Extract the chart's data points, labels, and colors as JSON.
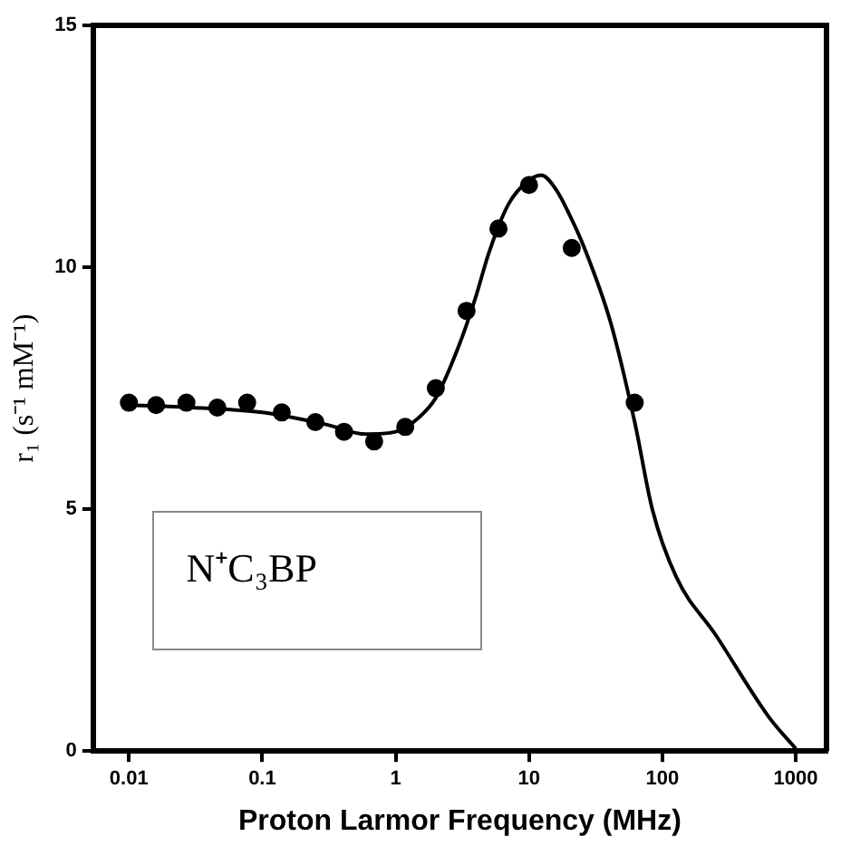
{
  "chart_data": {
    "type": "scatter",
    "xlabel": "Proton Larmor Frequency (MHz)",
    "ylabel": "r₁ (s⁻¹ mM⁻¹)",
    "annotations": [
      "N⁺C₃BP"
    ],
    "log": "x",
    "xlim": [
      0.0054,
      1700
    ],
    "xticks": [
      0.01,
      0.1,
      1,
      10,
      100,
      1000
    ],
    "ylim": [
      0,
      15
    ],
    "yticks": [
      0,
      5,
      10,
      15
    ],
    "grid": false,
    "legend": false,
    "series": [
      {
        "color": "#000000",
        "marker": "circle",
        "x": [
          0.01,
          0.016,
          0.027,
          0.046,
          0.077,
          0.14,
          0.25,
          0.41,
          0.69,
          1.18,
          2.0,
          3.4,
          5.9,
          10.0,
          20.9,
          62
        ],
        "values": [
          7.2,
          7.15,
          7.2,
          7.1,
          7.2,
          7.0,
          6.8,
          6.6,
          6.4,
          6.7,
          7.5,
          9.1,
          10.8,
          11.7,
          10.4,
          7.2
        ]
      },
      {
        "type": "line",
        "color": "#000000",
        "marker": "none",
        "line_style": "solid",
        "x": [
          0.01,
          0.03,
          0.1,
          0.3,
          0.6,
          1,
          1.5,
          2,
          3,
          4,
          5,
          7,
          10,
          12.4,
          16,
          20,
          26,
          41,
          62,
          84,
          127,
          251,
          630,
          1000
        ],
        "values": [
          7.15,
          7.1,
          7.0,
          6.75,
          6.55,
          6.6,
          6.9,
          7.3,
          8.4,
          9.4,
          10.3,
          11.3,
          11.8,
          11.9,
          11.6,
          11.1,
          10.4,
          8.85,
          6.8,
          5.0,
          3.6,
          2.4,
          0.7,
          0.05
        ]
      }
    ]
  }
}
